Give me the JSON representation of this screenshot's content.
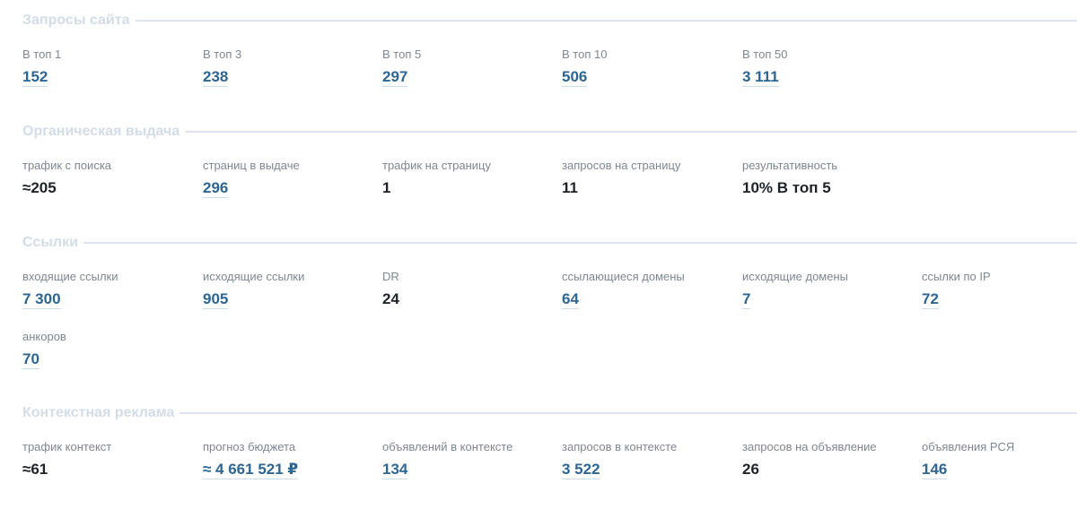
{
  "sections": [
    {
      "title": "Запросы сайта",
      "rows": [
        [
          {
            "label": "В топ 1",
            "value": "152",
            "link": true
          },
          {
            "label": "В топ 3",
            "value": "238",
            "link": true
          },
          {
            "label": "В топ 5",
            "value": "297",
            "link": true
          },
          {
            "label": "В топ 10",
            "value": "506",
            "link": true
          },
          {
            "label": "В топ 50",
            "value": "3 111",
            "link": true
          }
        ]
      ]
    },
    {
      "title": "Органическая выдача",
      "rows": [
        [
          {
            "label": "трафик с поиска",
            "value": "≈205",
            "link": false
          },
          {
            "label": "страниц в выдаче",
            "value": "296",
            "link": true
          },
          {
            "label": "трафик на страницу",
            "value": "1",
            "link": false
          },
          {
            "label": "запросов на страницу",
            "value": "11",
            "link": false
          },
          {
            "label": "результативность",
            "value": "10% В топ 5",
            "link": false
          }
        ]
      ]
    },
    {
      "title": "Ссылки",
      "rows": [
        [
          {
            "label": "входящие ссылки",
            "value": "7 300",
            "link": true
          },
          {
            "label": "исходящие ссылки",
            "value": "905",
            "link": true
          },
          {
            "label": "DR",
            "value": "24",
            "link": false
          },
          {
            "label": "ссылающиеся домены",
            "value": "64",
            "link": true
          },
          {
            "label": "исходящие домены",
            "value": "7",
            "link": true
          },
          {
            "label": "ссылки по IP",
            "value": "72",
            "link": true
          }
        ],
        [
          {
            "label": "анкоров",
            "value": "70",
            "link": true
          }
        ]
      ]
    },
    {
      "title": "Контекстная реклама",
      "rows": [
        [
          {
            "label": "трафик контекст",
            "value": "≈61",
            "link": false
          },
          {
            "label": "прогноз бюджета",
            "value": "≈ 4 661 521 ₽",
            "link": true
          },
          {
            "label": "объявлений в контексте",
            "value": "134",
            "link": true
          },
          {
            "label": "запросов в контексте",
            "value": "3 522",
            "link": true
          },
          {
            "label": "запросов на объявление",
            "value": "26",
            "link": false
          },
          {
            "label": "объявления РСЯ",
            "value": "146",
            "link": true
          }
        ]
      ]
    }
  ]
}
